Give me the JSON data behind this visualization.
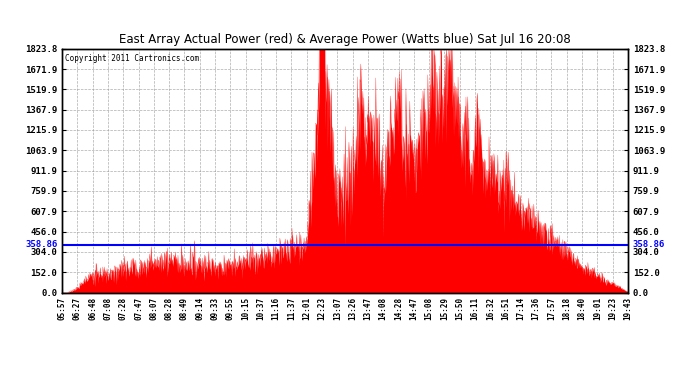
{
  "title": "East Array Actual Power (red) & Average Power (Watts blue) Sat Jul 16 20:08",
  "copyright": "Copyright 2011 Cartronics.com",
  "ymin": 0.0,
  "ymax": 1823.8,
  "yticks": [
    0.0,
    152.0,
    304.0,
    456.0,
    607.9,
    759.9,
    911.9,
    1063.9,
    1215.9,
    1367.9,
    1519.9,
    1671.9,
    1823.8
  ],
  "avg_line": 358.86,
  "avg_label": "358.86",
  "line_color": "#0000ff",
  "fill_color": "#ff0000",
  "background": "#ffffff",
  "grid_color": "#999999",
  "title_color": "#000000",
  "xtick_labels": [
    "05:57",
    "06:27",
    "06:48",
    "07:08",
    "07:28",
    "07:47",
    "08:07",
    "08:28",
    "08:49",
    "09:14",
    "09:33",
    "09:55",
    "10:15",
    "10:37",
    "11:16",
    "11:37",
    "12:01",
    "12:23",
    "13:07",
    "13:26",
    "13:47",
    "14:08",
    "14:28",
    "14:47",
    "15:08",
    "15:29",
    "15:50",
    "16:11",
    "16:32",
    "16:51",
    "17:14",
    "17:36",
    "17:57",
    "18:18",
    "18:40",
    "19:01",
    "19:23",
    "19:43"
  ],
  "segment_values": [
    30,
    60,
    130,
    140,
    160,
    180,
    210,
    230,
    200,
    220,
    200,
    210,
    230,
    260,
    280,
    310,
    340,
    1823,
    700,
    900,
    1300,
    700,
    1150,
    820,
    1250,
    1380,
    1150,
    900,
    870,
    830,
    600,
    500,
    400,
    300,
    200,
    120,
    60,
    20
  ]
}
